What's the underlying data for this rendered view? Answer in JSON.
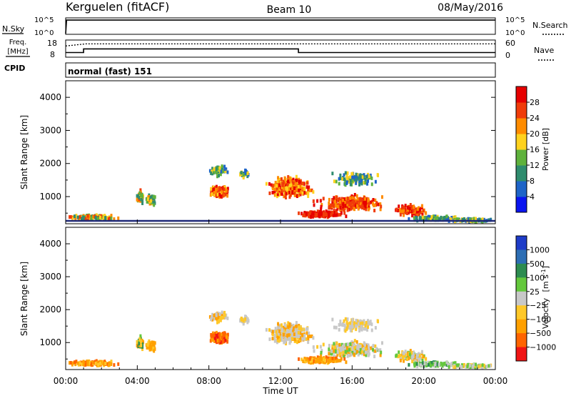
{
  "header": {
    "station": "Kerguelen (fitACF)",
    "beam": "Beam 10",
    "date": "08/May/2016"
  },
  "chart_data": [
    {
      "type": "line",
      "name": "nsky-nsearch-panel",
      "left_label": "N.Sky",
      "right_label": "N.Search",
      "left_ticks": [
        "10^5",
        "10^0"
      ],
      "right_ticks": [
        "10^5",
        "10^0"
      ],
      "x_hours": [
        0,
        0.05,
        24
      ],
      "nsky_level": [
        0,
        0.9,
        0.9
      ]
    },
    {
      "type": "line",
      "name": "freq-nave-panel",
      "left_label_top": "Freq.",
      "left_label_bottom": "[MHz]",
      "right_label": "Nave",
      "left_ticks": [
        18,
        8
      ],
      "right_ticks": [
        60,
        0
      ],
      "freq_series": {
        "x": [
          0,
          1.0,
          1.0,
          13.0,
          13.0,
          24
        ],
        "y": [
          10.5,
          10.5,
          12.8,
          12.8,
          10.5,
          10.5
        ]
      },
      "nave_series": {
        "x": [
          0,
          1.1,
          24
        ],
        "y": [
          40,
          48,
          48
        ]
      }
    },
    {
      "type": "heatmap",
      "name": "power-panel",
      "ylabel": "Slant Range [km]",
      "ylim": [
        180,
        4500
      ],
      "xlim": [
        0,
        24
      ],
      "yticks": [
        1000,
        2000,
        3000,
        4000
      ],
      "colorbar": {
        "label": "Power [dB]",
        "ticks": [
          "4",
          "8",
          "12",
          "16",
          "20",
          "24",
          "28"
        ],
        "colors": [
          "#0a14f0",
          "#1e64c8",
          "#2f8c6e",
          "#5fb23c",
          "#ffd21e",
          "#ff8c00",
          "#f03c0a",
          "#e60000"
        ]
      }
    },
    {
      "type": "heatmap",
      "name": "velocity-panel",
      "ylabel": "Slant Range [km]",
      "xlabel": "Time UT",
      "ylim": [
        180,
        4500
      ],
      "xlim": [
        0,
        24
      ],
      "yticks": [
        1000,
        2000,
        3000,
        4000
      ],
      "xticks": [
        "00:00",
        "04:00",
        "08:00",
        "12:00",
        "16:00",
        "20:00",
        "00:00"
      ],
      "colorbar": {
        "label": "Velocity",
        "unit_main": "[m s",
        "unit_sup": "-1",
        "unit_end": "]",
        "ticks": [
          "1000",
          "500",
          "100",
          "25",
          "−25",
          "−100",
          "−500",
          "−1000"
        ],
        "colors": [
          "#1e3cc8",
          "#2d6eb4",
          "#2d8c50",
          "#64c83c",
          "#c8c8c8",
          "#ffc828",
          "#ffa000",
          "#ff6400",
          "#f01414"
        ]
      }
    }
  ],
  "cpid": {
    "label": "CPID",
    "mode": "normal (fast) 151"
  }
}
